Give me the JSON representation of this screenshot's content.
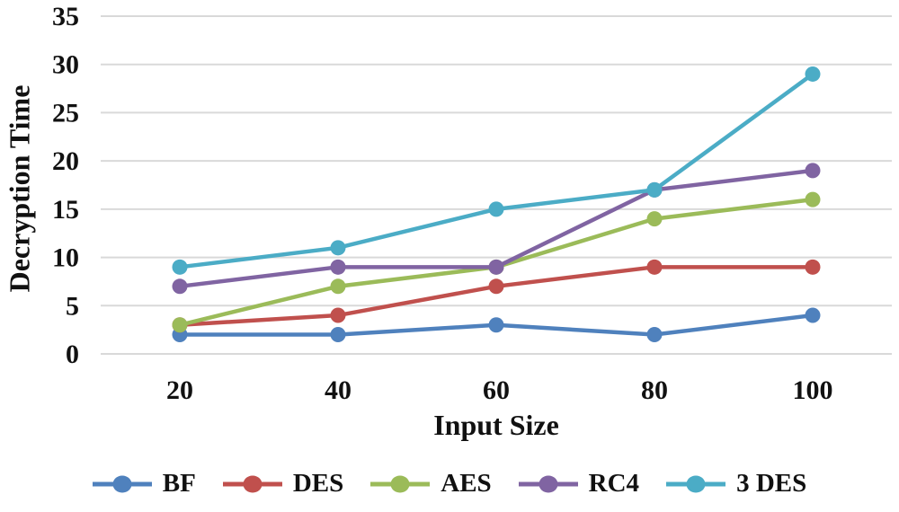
{
  "chart_data": {
    "type": "line",
    "title": "",
    "xlabel": "Input Size",
    "ylabel": "Decryption Time",
    "categories": [
      "20",
      "40",
      "60",
      "80",
      "100"
    ],
    "yticks": [
      0,
      5,
      10,
      15,
      20,
      25,
      30,
      35
    ],
    "ylim": [
      0,
      35
    ],
    "grid": "horizontal",
    "gridline_color": "#D9D9D9",
    "text_color": "#111111",
    "legend_position": "bottom",
    "series": [
      {
        "name": "BF",
        "color": "#4F81BD",
        "values": [
          2,
          2,
          3,
          2,
          4
        ]
      },
      {
        "name": "DES",
        "color": "#C0504D",
        "values": [
          3,
          4,
          7,
          9,
          9
        ]
      },
      {
        "name": "AES",
        "color": "#9BBB59",
        "values": [
          3,
          7,
          9,
          14,
          16
        ]
      },
      {
        "name": "RC4",
        "color": "#8064A2",
        "values": [
          7,
          9,
          9,
          17,
          19
        ]
      },
      {
        "name": "3 DES",
        "color": "#4BACC6",
        "values": [
          9,
          11,
          15,
          17,
          29
        ]
      }
    ]
  }
}
